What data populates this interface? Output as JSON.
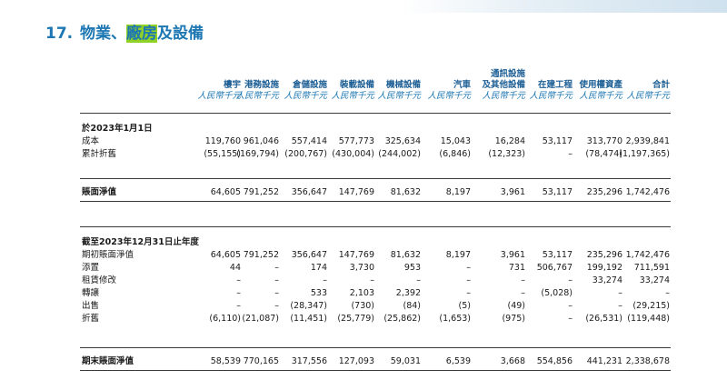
{
  "title": {
    "number": "17.",
    "pre": "物業、",
    "highlight": "廠房",
    "post": "及設備"
  },
  "columns": [
    {
      "label": [
        "樓宇"
      ],
      "unit": "人民幣千元"
    },
    {
      "label": [
        "港務設施"
      ],
      "unit": "人民幣千元"
    },
    {
      "label": [
        "倉儲設施"
      ],
      "unit": "人民幣千元"
    },
    {
      "label": [
        "裝載設備"
      ],
      "unit": "人民幣千元"
    },
    {
      "label": [
        "機械設備"
      ],
      "unit": "人民幣千元"
    },
    {
      "label": [
        "汽車"
      ],
      "unit": "人民幣千元"
    },
    {
      "label": [
        "通訊設施",
        "及其他設備"
      ],
      "unit": "人民幣千元"
    },
    {
      "label": [
        "在建工程"
      ],
      "unit": "人民幣千元"
    },
    {
      "label": [
        "使用權資產"
      ],
      "unit": "人民幣千元"
    },
    {
      "label": [
        "合計"
      ],
      "unit": "人民幣千元"
    }
  ],
  "sections": [
    {
      "heading": "於2023年1月1日",
      "rows": [
        {
          "label": "成本",
          "values": [
            "119,760",
            "961,046",
            "557,414",
            "577,773",
            "325,634",
            "15,043",
            "16,284",
            "53,117",
            "313,770",
            "2,939,841"
          ]
        },
        {
          "label": "累計折舊",
          "values": [
            "(55,155)",
            "(169,794)",
            "(200,767)",
            "(430,004)",
            "(244,002)",
            "(6,846)",
            "(12,323)",
            "–",
            "(78,474)",
            "(1,197,365)"
          ]
        }
      ],
      "total": {
        "label": "賬面淨值",
        "values": [
          "64,605",
          "791,252",
          "356,647",
          "147,769",
          "81,632",
          "8,197",
          "3,961",
          "53,117",
          "235,296",
          "1,742,476"
        ]
      }
    },
    {
      "heading": "截至2023年12月31日止年度",
      "rows": [
        {
          "label": "期初賬面淨值",
          "values": [
            "64,605",
            "791,252",
            "356,647",
            "147,769",
            "81,632",
            "8,197",
            "3,961",
            "53,117",
            "235,296",
            "1,742,476"
          ]
        },
        {
          "label": "添置",
          "values": [
            "44",
            "–",
            "174",
            "3,730",
            "953",
            "–",
            "731",
            "506,767",
            "199,192",
            "711,591"
          ]
        },
        {
          "label": "租賃修改",
          "values": [
            "–",
            "–",
            "–",
            "–",
            "–",
            "–",
            "–",
            "–",
            "33,274",
            "33,274"
          ]
        },
        {
          "label": "轉讓",
          "values": [
            "–",
            "–",
            "533",
            "2,103",
            "2,392",
            "–",
            "–",
            "(5,028)",
            "–",
            "–"
          ]
        },
        {
          "label": "出售",
          "values": [
            "–",
            "–",
            "(28,347)",
            "(730)",
            "(84)",
            "(5)",
            "(49)",
            "–",
            "–",
            "(29,215)"
          ]
        },
        {
          "label": "折舊",
          "values": [
            "(6,110)",
            "(21,087)",
            "(11,451)",
            "(25,779)",
            "(25,862)",
            "(1,653)",
            "(975)",
            "–",
            "(26,531)",
            "(119,448)"
          ]
        }
      ],
      "total": {
        "label": "期末賬面淨值",
        "values": [
          "58,539",
          "770,165",
          "317,556",
          "127,093",
          "59,031",
          "6,539",
          "3,668",
          "554,856",
          "441,231",
          "2,338,678"
        ]
      }
    }
  ]
}
